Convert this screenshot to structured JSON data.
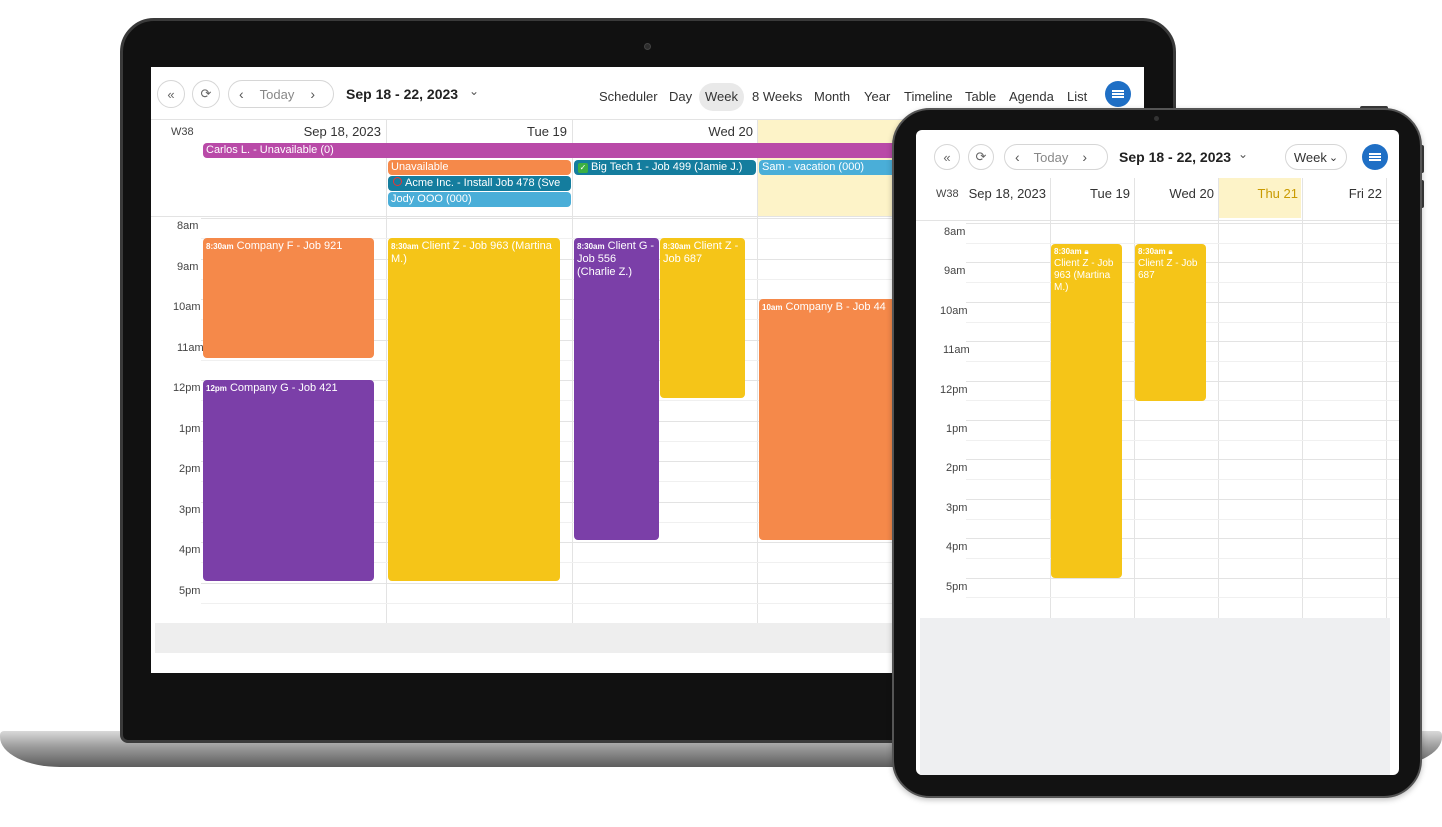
{
  "laptop": {
    "toolbar": {
      "today": "Today",
      "date_range": "Sep 18 - 22, 2023",
      "views": [
        "Scheduler",
        "Day",
        "Week",
        "8 Weeks",
        "Month",
        "Year",
        "Timeline",
        "Table",
        "Agenda",
        "List"
      ],
      "active_view": "Week"
    },
    "week_label": "W38",
    "days": [
      "Sep 18, 2023",
      "Tue 19",
      "Wed 20"
    ],
    "times": [
      "8am",
      "9am",
      "10am",
      "11am",
      "12pm",
      "1pm",
      "2pm",
      "3pm",
      "4pm",
      "5pm"
    ],
    "allday": {
      "carlos": "Carlos L. - Unavailable (0)",
      "unavailable": "Unavailable",
      "acme": "Acme Inc. - Install Job 478 (Sve",
      "jody": "Jody OOO (000)",
      "bigtech": "Big Tech 1 - Job 499 (Jamie J.)",
      "sam": "Sam - vacation (000)"
    },
    "events": {
      "company_f": {
        "time": "8:30am",
        "title": "Company F - Job 921"
      },
      "company_g": {
        "time": "12pm",
        "title": "Company G - Job 421"
      },
      "client_z_963": {
        "time": "8:30am",
        "title": "Client Z - Job 963 (Martina M.)"
      },
      "client_g": {
        "time": "8:30am",
        "title": "Client G - Job 556 (Charlie Z.)"
      },
      "client_z_687": {
        "time": "8:30am",
        "title": "Client Z - Job 687"
      },
      "company_b": {
        "time": "10am",
        "title": "Company B - Job 44"
      }
    }
  },
  "tablet": {
    "toolbar": {
      "today": "Today",
      "date_range": "Sep 18 - 22, 2023",
      "view": "Week"
    },
    "week_label": "W38",
    "days": [
      "Sep 18, 2023",
      "Tue 19",
      "Wed 20",
      "Thu 21",
      "Fri 22"
    ],
    "times": [
      "8am",
      "9am",
      "10am",
      "11am",
      "12pm",
      "1pm",
      "2pm",
      "3pm",
      "4pm",
      "5pm"
    ],
    "events": {
      "client_z_963": {
        "time": "8:30am",
        "title": "Client Z - Job 963 (Martina M.)"
      },
      "client_z_687": {
        "time": "8:30am",
        "title": "Client Z - Job 687"
      }
    }
  },
  "colors": {
    "orange": "#f5894a",
    "yellow": "#f5c518",
    "purple": "#7b3fa8",
    "magenta": "#b94aa8",
    "teal": "#147d9e",
    "sky": "#4aaed8",
    "today_bg": "#fdf3c8",
    "accent": "#1f6fc5"
  }
}
